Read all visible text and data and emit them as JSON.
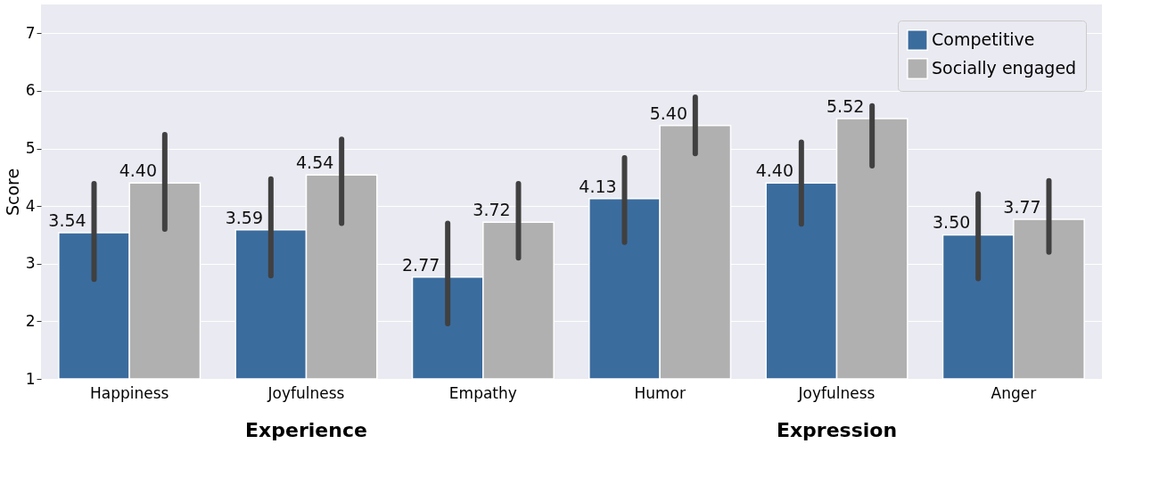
{
  "chart_data": {
    "type": "bar",
    "ylabel": "Score",
    "categories": [
      "Happiness",
      "Joyfulness",
      "Empathy",
      "Humor",
      "Joyfulness",
      "Anger"
    ],
    "series": [
      {
        "name": "Competitive",
        "color": "#3b6c9e",
        "values": [
          3.54,
          3.59,
          2.77,
          4.13,
          4.4,
          3.5
        ],
        "errors": [
          [
            2.73,
            4.39
          ],
          [
            2.79,
            4.47
          ],
          [
            1.96,
            3.7
          ],
          [
            3.37,
            4.84
          ],
          [
            3.69,
            5.11
          ],
          [
            2.74,
            4.21
          ]
        ],
        "value_labels": [
          "3.54",
          "3.59",
          "2.77",
          "4.13",
          "4.40",
          "3.50"
        ]
      },
      {
        "name": "Socially engaged",
        "color": "#b0b0b0",
        "values": [
          4.4,
          4.54,
          3.72,
          5.4,
          5.52,
          3.77
        ],
        "errors": [
          [
            3.6,
            5.24
          ],
          [
            3.7,
            5.16
          ],
          [
            3.1,
            4.39
          ],
          [
            4.91,
            5.89
          ],
          [
            4.7,
            5.74
          ],
          [
            3.2,
            4.44
          ]
        ],
        "value_labels": [
          "4.40",
          "4.54",
          "3.72",
          "5.40",
          "5.52",
          "3.77"
        ]
      }
    ],
    "ylim": [
      1,
      7.5
    ],
    "yticks": [
      1,
      2,
      3,
      4,
      5,
      6,
      7
    ],
    "grid": "y",
    "legend": "top right",
    "annotations": [
      "Experience",
      "Expression"
    ]
  }
}
